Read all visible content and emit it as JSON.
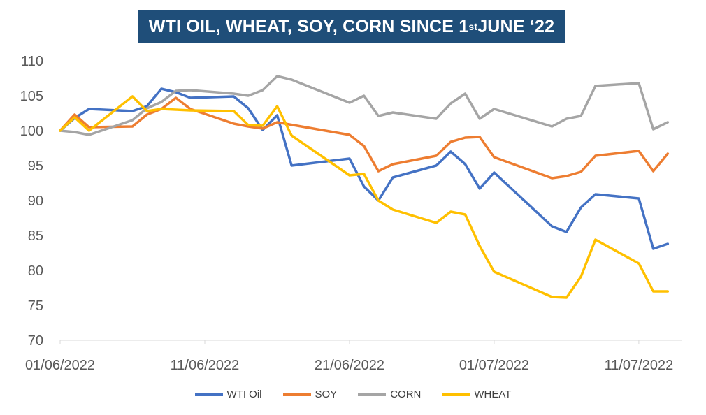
{
  "chart_data": {
    "type": "line",
    "title_pre": "WTI OIL, WHEAT, SOY, CORN SINCE 1",
    "title_sup": "st",
    "title_post": " JUNE ‘22",
    "ylim": [
      70,
      110
    ],
    "yticks": [
      70,
      75,
      80,
      85,
      90,
      95,
      100,
      105,
      110
    ],
    "xlim": [
      0,
      43
    ],
    "xticks": [
      {
        "day": 0,
        "label": "01/06/2022"
      },
      {
        "day": 10,
        "label": "11/06/2022"
      },
      {
        "day": 20,
        "label": "21/06/2022"
      },
      {
        "day": 30,
        "label": "01/07/2022"
      },
      {
        "day": 40,
        "label": "11/07/2022"
      }
    ],
    "grid": false,
    "legend_position": "bottom",
    "series": [
      {
        "name": "WTI Oil",
        "color": "#4472c4",
        "points": [
          [
            0,
            100
          ],
          [
            1,
            101.8
          ],
          [
            2,
            103.1
          ],
          [
            5,
            102.8
          ],
          [
            6,
            103.5
          ],
          [
            7,
            106
          ],
          [
            8,
            105.5
          ],
          [
            9,
            104.7
          ],
          [
            12,
            104.9
          ],
          [
            13,
            103.2
          ],
          [
            14,
            100.1
          ],
          [
            15,
            102.2
          ],
          [
            16,
            95
          ],
          [
            20,
            96
          ],
          [
            21,
            92
          ],
          [
            22,
            90
          ],
          [
            23,
            93.3
          ],
          [
            26,
            95
          ],
          [
            27,
            97
          ],
          [
            28,
            95.2
          ],
          [
            29,
            91.7
          ],
          [
            30,
            94
          ],
          [
            34,
            86.3
          ],
          [
            35,
            85.5
          ],
          [
            36,
            89
          ],
          [
            37,
            90.9
          ],
          [
            40,
            90.3
          ],
          [
            41,
            83.1
          ],
          [
            42,
            83.8
          ]
        ]
      },
      {
        "name": "SOY",
        "color": "#ed7d31",
        "points": [
          [
            0,
            100
          ],
          [
            1,
            102.3
          ],
          [
            2,
            100.5
          ],
          [
            5,
            100.6
          ],
          [
            6,
            102.3
          ],
          [
            7,
            103.1
          ],
          [
            8,
            104.7
          ],
          [
            9,
            103.1
          ],
          [
            12,
            101
          ],
          [
            13,
            100.6
          ],
          [
            14,
            100.3
          ],
          [
            15,
            101.2
          ],
          [
            20,
            99.4
          ],
          [
            21,
            97.8
          ],
          [
            22,
            94.2
          ],
          [
            23,
            95.2
          ],
          [
            26,
            96.4
          ],
          [
            27,
            98.4
          ],
          [
            28,
            99
          ],
          [
            29,
            99.1
          ],
          [
            30,
            96.2
          ],
          [
            34,
            93.2
          ],
          [
            35,
            93.5
          ],
          [
            36,
            94.1
          ],
          [
            37,
            96.4
          ],
          [
            40,
            97.1
          ],
          [
            41,
            94.2
          ],
          [
            42,
            96.7
          ]
        ]
      },
      {
        "name": "CORN",
        "color": "#a5a5a5",
        "points": [
          [
            0,
            100
          ],
          [
            1,
            99.8
          ],
          [
            2,
            99.4
          ],
          [
            5,
            101.5
          ],
          [
            6,
            103.2
          ],
          [
            7,
            104.1
          ],
          [
            8,
            105.7
          ],
          [
            9,
            105.8
          ],
          [
            12,
            105.3
          ],
          [
            13,
            105
          ],
          [
            14,
            105.8
          ],
          [
            15,
            107.8
          ],
          [
            16,
            107.3
          ],
          [
            20,
            104
          ],
          [
            21,
            105
          ],
          [
            22,
            102.1
          ],
          [
            23,
            102.6
          ],
          [
            26,
            101.7
          ],
          [
            27,
            103.9
          ],
          [
            28,
            105.3
          ],
          [
            29,
            101.7
          ],
          [
            30,
            103.1
          ],
          [
            34,
            100.6
          ],
          [
            35,
            101.7
          ],
          [
            36,
            102.1
          ],
          [
            37,
            106.4
          ],
          [
            40,
            106.8
          ],
          [
            41,
            100.2
          ],
          [
            42,
            101.2
          ]
        ]
      },
      {
        "name": "WHEAT",
        "color": "#ffc000",
        "points": [
          [
            0,
            100
          ],
          [
            1,
            101.9
          ],
          [
            2,
            100
          ],
          [
            5,
            104.9
          ],
          [
            6,
            102.8
          ],
          [
            7,
            103.1
          ],
          [
            8,
            103
          ],
          [
            9,
            102.9
          ],
          [
            12,
            102.8
          ],
          [
            13,
            100.8
          ],
          [
            14,
            100.7
          ],
          [
            15,
            103.5
          ],
          [
            16,
            99.3
          ],
          [
            20,
            93.6
          ],
          [
            21,
            93.8
          ],
          [
            22,
            90
          ],
          [
            23,
            88.7
          ],
          [
            26,
            86.8
          ],
          [
            27,
            88.4
          ],
          [
            28,
            88
          ],
          [
            29,
            83.5
          ],
          [
            30,
            79.8
          ],
          [
            34,
            76.2
          ],
          [
            35,
            76.1
          ],
          [
            36,
            79.1
          ],
          [
            37,
            84.4
          ],
          [
            40,
            81
          ],
          [
            41,
            77
          ],
          [
            42,
            77
          ]
        ]
      }
    ]
  }
}
